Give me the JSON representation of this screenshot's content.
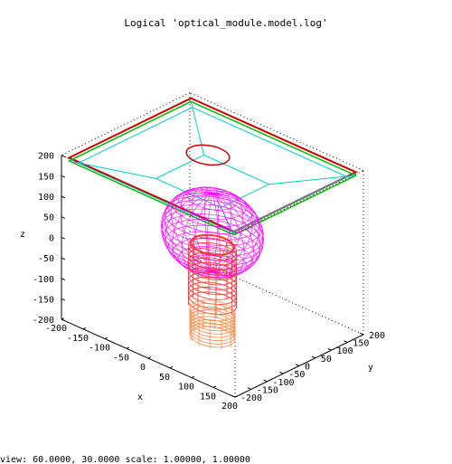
{
  "chart_data": {
    "type": "scatter",
    "title": "Logical 'optical_module.model.log'",
    "xlabel": "x",
    "ylabel": "y",
    "zlabel": "z",
    "xlim": [
      -200,
      200
    ],
    "ylim": [
      -200,
      200
    ],
    "zlim": [
      -200,
      200
    ],
    "x_ticks": [
      -200,
      -150,
      -100,
      -50,
      0,
      50,
      100,
      150,
      200
    ],
    "y_ticks": [
      -200,
      -150,
      -100,
      -50,
      0,
      50,
      100,
      150,
      200
    ],
    "z_ticks": [
      -200,
      -150,
      -100,
      -50,
      0,
      50,
      100,
      150,
      200
    ],
    "grid": false,
    "legend": "none",
    "view": {
      "rot_x": 60,
      "rot_z": 30,
      "scale": 1,
      "scale_z": 1
    },
    "status_text": "view:  60.0000,  30.0000   scale:  1.00000,  1.00000",
    "colors": {
      "box": "#000000",
      "frame_red": "#cc0000",
      "frame_green": "#00bb00",
      "frame_cyan": "#00cccc",
      "bulb": "#ff00ff",
      "stem": "#ff3333",
      "base": "#ff8844"
    }
  }
}
